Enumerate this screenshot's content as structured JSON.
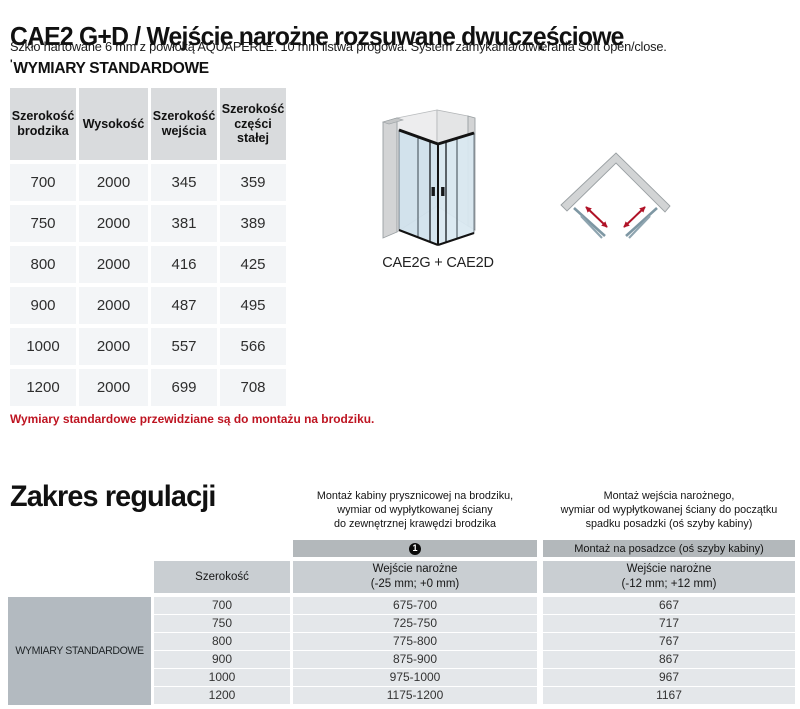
{
  "header": {
    "title": "CAE2 G+D / Wejście narożne rozsuwane dwuczęściowe",
    "subtitle": "Szkło hartowane 6 mm z powłoką AQUAPERLE. 10 mm listwa progowa. System zamykania/otwierania Soft open/close."
  },
  "standard_section": {
    "marker": "'",
    "title": "WYMIARY STANDARDOWE",
    "table": {
      "headers": [
        "Szerokość\nbrodzika",
        "Wysokość",
        "Szerokość\nwejścia",
        "Szerokość\nczęści\nstałej"
      ],
      "rows": [
        [
          "700",
          "2000",
          "345",
          "359"
        ],
        [
          "750",
          "2000",
          "381",
          "389"
        ],
        [
          "800",
          "2000",
          "416",
          "425"
        ],
        [
          "900",
          "2000",
          "487",
          "495"
        ],
        [
          "1000",
          "2000",
          "557",
          "566"
        ],
        [
          "1200",
          "2000",
          "699",
          "708"
        ]
      ]
    },
    "note": "Wymiary standardowe przewidziane są do montażu na brodziku."
  },
  "diagrams": {
    "caption": "CAE2G + CAE2D"
  },
  "adjustment_section": {
    "title": "Zakres regulacji",
    "note_left": "Montaż kabiny prysznicowej na brodziku,\nwymiar od wypłytkowanej ściany\ndo zewnętrznej krawędzi brodzika",
    "note_right": "Montaż wejścia narożnego,\nwymiar od wypłytkowanej ściany do początku\nspadku posadzki (oś szyby kabiny)",
    "badge": "1",
    "bar_right_label": "Montaż na posadzce (oś szyby kabiny)",
    "row_label": "WYMIARY STANDARDOWE",
    "col_headers": [
      "Szerokość",
      "Wejście narożne\n(-25 mm; +0 mm)",
      "Wejście narożne\n(-12 mm; +12 mm)"
    ],
    "rows": [
      [
        "700",
        "675-700",
        "667"
      ],
      [
        "750",
        "725-750",
        "717"
      ],
      [
        "800",
        "775-800",
        "767"
      ],
      [
        "900",
        "875-900",
        "867"
      ],
      [
        "1000",
        "975-1000",
        "967"
      ],
      [
        "1200",
        "1175-1200",
        "1167"
      ]
    ]
  },
  "colors": {
    "accent_red": "#be1421",
    "arrow_red": "#b01227",
    "table_header_bg": "#d9dbdd",
    "table_cell_bg": "#f3f5f7",
    "bar_bg": "#b3b8bb",
    "subheader_bg": "#c9ced2",
    "row_bg": "#e4e7ea",
    "label_block_bg": "#b3bac0",
    "glass_blue": "#cfe1ec",
    "wall_gray": "#d3d4d5"
  }
}
